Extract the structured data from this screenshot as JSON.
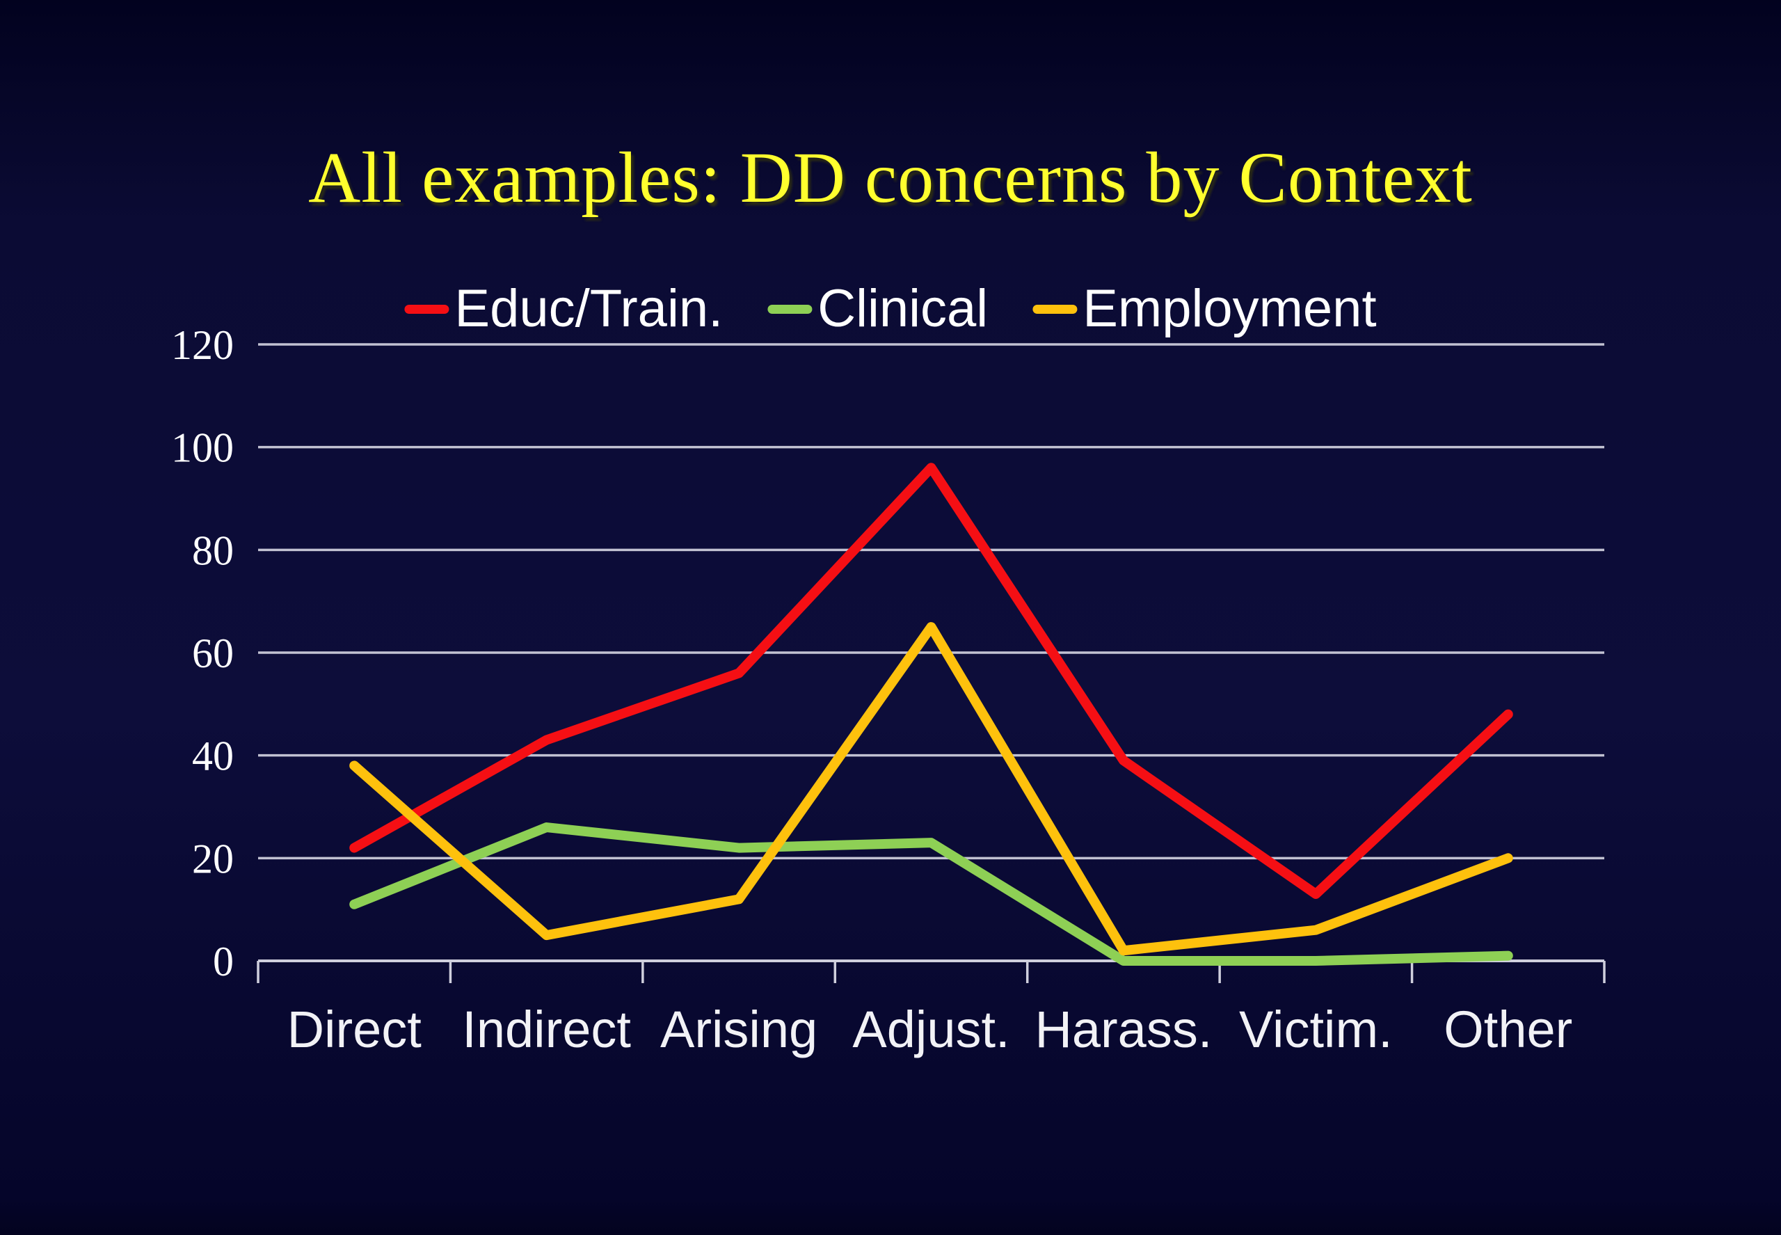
{
  "slide": {
    "title": "All examples: DD concerns by Context"
  },
  "legend": {
    "items": [
      {
        "label": "Educ/Train.",
        "color": "#f50f14"
      },
      {
        "label": "Clinical",
        "color": "#8ed055"
      },
      {
        "label": "Employment",
        "color": "#fec10d"
      }
    ]
  },
  "colors": {
    "background_top": "#02021f",
    "background_mid": "#0d0d3a",
    "background_bottom": "#05052a",
    "title_text": "#ffff2e",
    "legend_text": "#ffffff",
    "axis_text": "#ffffff",
    "gridline": "#c2c2d2",
    "axis_line": "#cfcfdd"
  },
  "chart_data": {
    "type": "line",
    "title": "All examples: DD concerns by Context",
    "categories": [
      "Direct",
      "Indirect",
      "Arising",
      "Adjust.",
      "Harass.",
      "Victim.",
      "Other"
    ],
    "series": [
      {
        "name": "Educ/Train.",
        "color": "#f50f14",
        "values": [
          22,
          43,
          56,
          96,
          39,
          13,
          48
        ]
      },
      {
        "name": "Clinical",
        "color": "#8ed055",
        "values": [
          11,
          26,
          22,
          23,
          0,
          0,
          1
        ]
      },
      {
        "name": "Employment",
        "color": "#fec10d",
        "values": [
          38,
          5,
          12,
          65,
          2,
          6,
          20
        ]
      }
    ],
    "xlabel": "",
    "ylabel": "",
    "ylim": [
      0,
      120
    ],
    "yticks": [
      0,
      20,
      40,
      60,
      80,
      100,
      120
    ],
    "grid": true,
    "legend_position": "top",
    "x_ticks_at_category_boundaries": true
  }
}
